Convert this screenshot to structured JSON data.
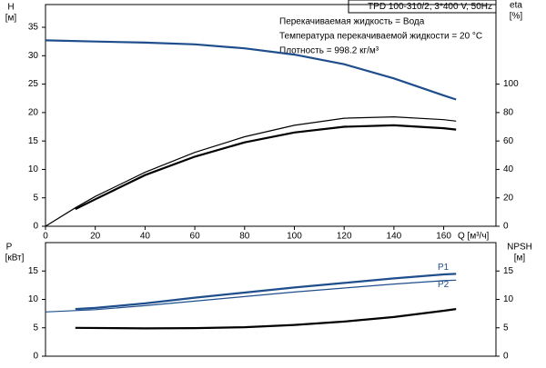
{
  "chart_data": [
    {
      "type": "line",
      "title": "TPD 100-310/2, 3*400 V, 50Hz",
      "annotations": [
        "Перекачиваемая жидкость = Вода",
        "Температура перекачиваемой жидкости = 20 °C",
        "Плотность = 998.2 кг/м³"
      ],
      "y_label": "H",
      "y_unit": "[м]",
      "y2_label": "eta",
      "y2_unit": "[%]",
      "x_label": "Q [м³/ч]",
      "xlim": [
        0,
        181
      ],
      "xticks": [
        0,
        20,
        40,
        60,
        80,
        100,
        120,
        140,
        160
      ],
      "ylim": [
        0,
        39
      ],
      "yticks": [
        0,
        5,
        10,
        15,
        20,
        25,
        30,
        35
      ],
      "y2lim": [
        0,
        156
      ],
      "y2ticks": [
        0,
        20,
        40,
        60,
        80,
        100
      ],
      "series": [
        {
          "color": "#1f4e8c",
          "linewidth": 2.2,
          "x": [
            0,
            20,
            40,
            60,
            80,
            100,
            120,
            140,
            160,
            165
          ],
          "values": [
            32.7,
            32.5,
            32.3,
            32.0,
            31.3,
            30.2,
            28.5,
            26.0,
            23.0,
            22.3
          ]
        },
        {
          "color": "#000000",
          "linewidth": 1.2,
          "axis": "y2",
          "x": [
            0,
            12,
            20,
            40,
            60,
            80,
            100,
            120,
            140,
            160,
            165
          ],
          "values": [
            0,
            13,
            21,
            38,
            52,
            63,
            71,
            76,
            77,
            75,
            74
          ]
        },
        {
          "color": "#000000",
          "linewidth": 2.2,
          "axis": "y2",
          "x": [
            12,
            20,
            40,
            60,
            80,
            100,
            120,
            140,
            160,
            165
          ],
          "values": [
            12,
            19,
            36,
            49,
            59,
            66,
            70,
            71,
            69,
            68
          ]
        }
      ]
    },
    {
      "type": "line",
      "y_label": "P",
      "y_unit": "[кВт]",
      "y2_label": "NPSH",
      "y2_unit": "[м]",
      "xlim": [
        0,
        181
      ],
      "ylim": [
        0,
        20
      ],
      "yticks": [
        0,
        5,
        10,
        15
      ],
      "y2lim": [
        0,
        20
      ],
      "y2ticks": [
        0,
        5,
        10,
        15
      ],
      "series": [
        {
          "name": "P1",
          "color": "#1f4e8c",
          "linewidth": 2.2,
          "x": [
            12,
            20,
            40,
            60,
            80,
            100,
            120,
            140,
            160,
            165
          ],
          "values": [
            8.3,
            8.5,
            9.3,
            10.3,
            11.2,
            12.1,
            12.9,
            13.7,
            14.4,
            14.5
          ]
        },
        {
          "name": "P2",
          "color": "#1f4e8c",
          "linewidth": 1.2,
          "x": [
            0,
            20,
            40,
            60,
            80,
            100,
            120,
            140,
            160,
            165
          ],
          "values": [
            7.8,
            8.2,
            8.9,
            9.7,
            10.5,
            11.3,
            12.0,
            12.7,
            13.3,
            13.4
          ]
        },
        {
          "color": "#000000",
          "linewidth": 2.2,
          "axis": "y2",
          "x": [
            12,
            40,
            60,
            80,
            100,
            120,
            140,
            160,
            165
          ],
          "values": [
            5.0,
            4.9,
            4.95,
            5.1,
            5.5,
            6.1,
            6.9,
            8.0,
            8.3
          ]
        }
      ]
    }
  ]
}
